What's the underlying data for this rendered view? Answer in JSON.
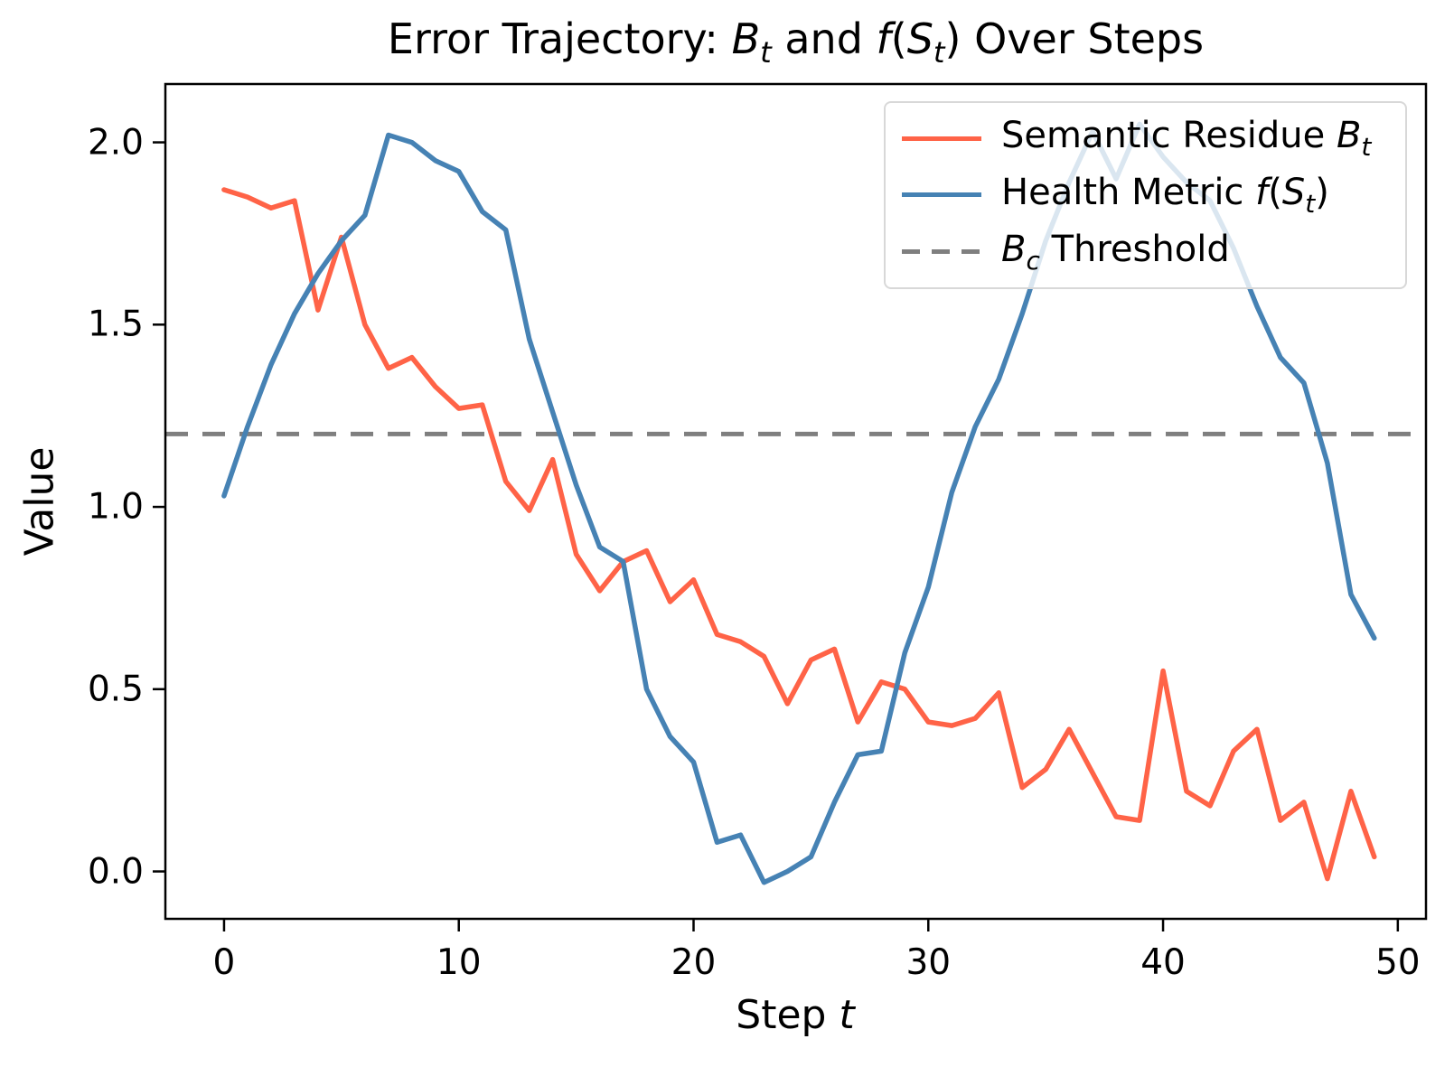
{
  "figure": {
    "title_segments": [
      {
        "t": "Error Trajectory: "
      },
      {
        "t": "B",
        "i": true
      },
      {
        "t": "t",
        "i": true,
        "sub": true
      },
      {
        "t": " and "
      },
      {
        "t": "f",
        "i": true
      },
      {
        "t": "("
      },
      {
        "t": "S",
        "i": true
      },
      {
        "t": "t",
        "i": true,
        "sub": true
      },
      {
        "t": ") Over Steps"
      }
    ]
  },
  "axes": {
    "ylabel": "Value",
    "xlabel_segments": [
      {
        "t": "Step "
      },
      {
        "t": "t",
        "i": true
      }
    ]
  },
  "legend": {
    "entries": [
      {
        "key": "semantic-residue",
        "color": "#ff6347",
        "style": "solid",
        "label_segments": [
          {
            "t": "Semantic Residue "
          },
          {
            "t": "B",
            "i": true
          },
          {
            "t": "t",
            "i": true,
            "sub": true
          }
        ]
      },
      {
        "key": "health-metric",
        "color": "#4682b4",
        "style": "solid",
        "label_segments": [
          {
            "t": "Health Metric "
          },
          {
            "t": "f",
            "i": true
          },
          {
            "t": "("
          },
          {
            "t": "S",
            "i": true
          },
          {
            "t": "t",
            "i": true,
            "sub": true
          },
          {
            "t": ")"
          }
        ]
      },
      {
        "key": "threshold",
        "color": "#7f7f7f",
        "style": "dashed",
        "label_segments": [
          {
            "t": "B",
            "i": true
          },
          {
            "t": "c",
            "i": true,
            "sub": true
          },
          {
            "t": " Threshold"
          }
        ]
      }
    ]
  },
  "chart_data": {
    "type": "line",
    "title": "Error Trajectory: B_t and f(S_t) Over Steps",
    "xlabel": "Step t",
    "ylabel": "Value",
    "x": [
      0,
      1,
      2,
      3,
      4,
      5,
      6,
      7,
      8,
      9,
      10,
      11,
      12,
      13,
      14,
      15,
      16,
      17,
      18,
      19,
      20,
      21,
      22,
      23,
      24,
      25,
      26,
      27,
      28,
      29,
      30,
      31,
      32,
      33,
      34,
      35,
      36,
      37,
      38,
      39,
      40,
      41,
      42,
      43,
      44,
      45,
      46,
      47,
      48,
      49
    ],
    "series": [
      {
        "name": "Semantic Residue B_t",
        "color": "#ff6347",
        "values": [
          1.87,
          1.85,
          1.82,
          1.84,
          1.54,
          1.74,
          1.5,
          1.38,
          1.41,
          1.33,
          1.27,
          1.28,
          1.07,
          0.99,
          1.13,
          0.87,
          0.77,
          0.85,
          0.88,
          0.74,
          0.8,
          0.65,
          0.63,
          0.59,
          0.46,
          0.58,
          0.61,
          0.41,
          0.52,
          0.5,
          0.41,
          0.4,
          0.42,
          0.49,
          0.23,
          0.28,
          0.39,
          0.27,
          0.15,
          0.14,
          0.55,
          0.22,
          0.18,
          0.33,
          0.39,
          0.14,
          0.19,
          -0.02,
          0.22,
          0.04
        ]
      },
      {
        "name": "Health Metric f(S_t)",
        "color": "#4682b4",
        "values": [
          1.03,
          1.22,
          1.39,
          1.53,
          1.64,
          1.73,
          1.8,
          2.02,
          2.0,
          1.95,
          1.92,
          1.81,
          1.76,
          1.46,
          1.26,
          1.06,
          0.89,
          0.85,
          0.5,
          0.37,
          0.3,
          0.08,
          0.1,
          -0.03,
          0.0,
          0.04,
          0.19,
          0.32,
          0.33,
          0.6,
          0.78,
          1.04,
          1.22,
          1.35,
          1.53,
          1.73,
          1.89,
          2.03,
          1.9,
          2.05,
          1.96,
          1.89,
          1.84,
          1.71,
          1.55,
          1.41,
          1.34,
          1.12,
          0.76,
          0.64
        ]
      }
    ],
    "threshold": {
      "name": "B_c Threshold",
      "value": 1.2,
      "color": "#7f7f7f",
      "style": "dashed"
    },
    "x_tick_values": [
      0,
      10,
      20,
      30,
      40,
      50
    ],
    "y_tick_values": [
      0.0,
      0.5,
      1.0,
      1.5,
      2.0
    ],
    "xlim": [
      -2.5,
      51.2
    ],
    "ylim": [
      -0.13,
      2.16
    ],
    "grid": false,
    "legend_position": "upper right"
  }
}
